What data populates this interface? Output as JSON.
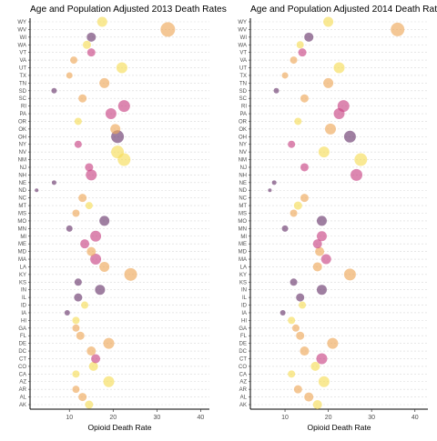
{
  "chart_data": [
    {
      "type": "scatter",
      "title": "Age and Population Adjusted 2013 Death Rates",
      "xlabel": "Opioid Death Rate",
      "ylabel": "",
      "xlim": [
        1,
        42
      ],
      "xticks": [
        10,
        20,
        30,
        40
      ],
      "grid": "horizontal dashed",
      "legend": "none",
      "states": [
        "AK",
        "AL",
        "AR",
        "AZ",
        "CA",
        "CO",
        "CT",
        "DC",
        "DE",
        "FL",
        "GA",
        "HI",
        "IA",
        "ID",
        "IL",
        "IN",
        "KS",
        "KY",
        "LA",
        "MA",
        "MD",
        "ME",
        "MI",
        "MN",
        "MO",
        "MS",
        "MT",
        "NC",
        "ND",
        "NE",
        "NH",
        "NJ",
        "NM",
        "NV",
        "NY",
        "OH",
        "OK",
        "OR",
        "PA",
        "RI",
        "SC",
        "SD",
        "TN",
        "TX",
        "UT",
        "VA",
        "VT",
        "WA",
        "WI",
        "WV",
        "WY"
      ],
      "x": [
        14.5,
        13.0,
        11.5,
        19.0,
        11.5,
        15.5,
        16.0,
        15.0,
        19.0,
        12.5,
        11.5,
        11.5,
        9.5,
        13.5,
        12.0,
        17.0,
        12.0,
        24.0,
        18.0,
        16.0,
        15.0,
        13.5,
        16.0,
        10.0,
        18.0,
        11.5,
        14.5,
        13.0,
        2.5,
        6.5,
        15.0,
        14.5,
        22.5,
        21.0,
        12.0,
        21.0,
        20.5,
        12.0,
        19.5,
        22.5,
        13.0,
        6.5,
        18.0,
        10.0,
        22.0,
        11.0,
        15.0,
        14.0,
        15.0,
        32.5,
        17.5
      ],
      "color_group": [
        1,
        2,
        2,
        1,
        1,
        1,
        3,
        2,
        2,
        2,
        2,
        1,
        4,
        1,
        4,
        4,
        4,
        2,
        2,
        3,
        2,
        3,
        3,
        4,
        4,
        2,
        1,
        2,
        4,
        4,
        3,
        3,
        1,
        1,
        3,
        4,
        2,
        1,
        3,
        3,
        2,
        4,
        2,
        2,
        1,
        2,
        3,
        1,
        4,
        2,
        1
      ],
      "size": [
        4.5,
        4.5,
        4,
        6,
        4,
        5,
        5,
        5,
        6,
        4.5,
        4,
        4,
        3,
        4,
        4.5,
        5.5,
        4,
        7,
        5.5,
        6,
        5,
        5,
        6,
        3.5,
        5.5,
        4,
        4,
        4.5,
        2,
        2.5,
        6,
        4.5,
        7,
        7,
        4,
        7,
        5.5,
        4,
        6,
        6.5,
        4.5,
        3,
        5.5,
        3.5,
        6,
        4,
        4.5,
        4.5,
        5,
        8,
        5.5
      ]
    },
    {
      "type": "scatter",
      "title": "Age and Population Adjusted 2014 Death Rates",
      "xlabel": "Opioid Death Rate",
      "ylabel": "",
      "xlim": [
        2,
        43
      ],
      "xticks": [
        10,
        20,
        30,
        40
      ],
      "grid": "horizontal dashed",
      "legend": "none",
      "states": [
        "AK",
        "AL",
        "AR",
        "AZ",
        "CA",
        "CO",
        "CT",
        "DC",
        "DE",
        "FL",
        "GA",
        "HI",
        "IA",
        "ID",
        "IL",
        "IN",
        "KS",
        "KY",
        "LA",
        "MA",
        "MD",
        "ME",
        "MI",
        "MN",
        "MO",
        "MS",
        "MT",
        "NC",
        "ND",
        "NE",
        "NH",
        "NJ",
        "NM",
        "NV",
        "NY",
        "OH",
        "OK",
        "OR",
        "PA",
        "RI",
        "SC",
        "SD",
        "TN",
        "TX",
        "UT",
        "VA",
        "VT",
        "WA",
        "WI",
        "WV",
        "WY"
      ],
      "x": [
        17.5,
        15.5,
        13.0,
        19.0,
        11.5,
        17.0,
        18.5,
        14.5,
        21.0,
        13.5,
        12.5,
        11.5,
        9.5,
        14.0,
        13.5,
        18.5,
        12.0,
        25.0,
        17.5,
        19.5,
        18.0,
        17.5,
        18.5,
        10.0,
        18.5,
        12.0,
        13.0,
        14.5,
        6.5,
        7.5,
        26.5,
        14.5,
        27.5,
        19.0,
        11.5,
        25.0,
        20.5,
        13.0,
        22.5,
        23.5,
        14.5,
        8.0,
        20.0,
        10.0,
        22.5,
        12.0,
        14.0,
        13.5,
        15.5,
        36.0,
        20.0
      ],
      "color_group": [
        1,
        2,
        2,
        1,
        1,
        1,
        3,
        2,
        2,
        2,
        2,
        1,
        4,
        1,
        4,
        4,
        4,
        2,
        2,
        3,
        2,
        3,
        3,
        4,
        4,
        2,
        1,
        2,
        4,
        4,
        3,
        3,
        1,
        1,
        3,
        4,
        2,
        1,
        3,
        3,
        2,
        4,
        2,
        2,
        1,
        2,
        3,
        1,
        4,
        2,
        1
      ],
      "size": [
        5,
        5,
        4.5,
        6,
        4,
        5,
        6,
        5,
        6,
        4.5,
        4,
        4,
        3,
        4,
        4.5,
        5.5,
        4,
        6.5,
        5,
        5.5,
        5,
        5,
        5.5,
        3.5,
        5.5,
        4,
        4.5,
        4.5,
        2,
        2.5,
        6.5,
        4.5,
        7,
        6,
        4,
        6.5,
        6,
        4,
        6,
        6.5,
        4.5,
        3,
        5.5,
        3.5,
        6,
        4,
        4.5,
        4,
        5,
        7.5,
        5.5
      ]
    }
  ],
  "colors": {
    "1": "#f6dd5a",
    "2": "#eea95c",
    "3": "#c94686",
    "4": "#6b3a6e"
  },
  "styles": {
    "point_opacity": 0.65,
    "axis_color": "#000000",
    "grid_color": "#d9d9d9",
    "tick_label_color": "#4d4d4d"
  }
}
